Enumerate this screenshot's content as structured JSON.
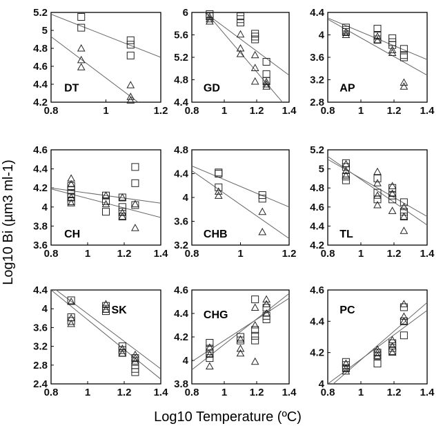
{
  "figure": {
    "xlabel": "Log10 Temperature (ºC)",
    "ylabel": "Log10 Bi (µm3 ml-1)"
  },
  "chart_data": [
    {
      "type": "scatter",
      "label": "DT",
      "xlim": [
        0.8,
        1.2
      ],
      "ylim": [
        4.2,
        5.2
      ],
      "xticks": [
        "0.8",
        "1",
        "1.2"
      ],
      "yticks": [
        "4.2",
        "4.4",
        "4.6",
        "4.8",
        "5",
        "5.2"
      ],
      "series": [
        {
          "marker": "square",
          "x": [
            0.91,
            0.91,
            1.09,
            1.09,
            1.09
          ],
          "y": [
            5.15,
            5.03,
            4.89,
            4.84,
            4.72
          ]
        },
        {
          "marker": "triangle",
          "x": [
            0.91,
            0.91,
            0.91,
            1.09,
            1.09,
            1.09
          ],
          "y": [
            4.8,
            4.67,
            4.59,
            4.39,
            4.26,
            4.22
          ]
        }
      ],
      "lines": [
        [
          0.8,
          5.18,
          1.2,
          4.7
        ],
        [
          0.8,
          4.93,
          1.2,
          4.01
        ]
      ]
    },
    {
      "type": "scatter",
      "label": "GD",
      "xlim": [
        0.8,
        1.4
      ],
      "ylim": [
        4.4,
        6
      ],
      "xticks": [
        "0.8",
        "1",
        "1.2",
        "1.4"
      ],
      "yticks": [
        "4.4",
        "4.8",
        "5.2",
        "5.6",
        "6"
      ],
      "series": [
        {
          "marker": "square",
          "x": [
            0.91,
            0.91,
            1.1,
            1.1,
            1.1,
            1.19,
            1.19,
            1.19,
            1.26,
            1.26,
            1.26
          ],
          "y": [
            5.97,
            5.93,
            5.93,
            5.88,
            5.82,
            5.62,
            5.57,
            5.52,
            5.12,
            4.9,
            4.78
          ]
        },
        {
          "marker": "triangle",
          "x": [
            0.91,
            0.91,
            0.91,
            1.1,
            1.1,
            1.1,
            1.19,
            1.19,
            1.19,
            1.26,
            1.26,
            1.26
          ],
          "y": [
            5.92,
            5.88,
            5.84,
            5.61,
            5.36,
            5.26,
            5.24,
            5.01,
            4.77,
            4.76,
            4.72,
            4.68
          ]
        }
      ],
      "lines": [
        [
          0.8,
          6.17,
          1.4,
          4.88
        ],
        [
          0.8,
          6.3,
          1.4,
          4.26
        ]
      ]
    },
    {
      "type": "scatter",
      "label": "AP",
      "xlim": [
        0.8,
        1.4
      ],
      "ylim": [
        2.8,
        4.4
      ],
      "xticks": [
        "0.8",
        "1",
        "1.2",
        "1.4"
      ],
      "yticks": [
        "2.8",
        "3.2",
        "3.6",
        "4",
        "4.4"
      ],
      "series": [
        {
          "marker": "square",
          "x": [
            0.91,
            0.91,
            0.91,
            1.1,
            1.1,
            1.1,
            1.19,
            1.19,
            1.19,
            1.26,
            1.26,
            1.26
          ],
          "y": [
            4.13,
            4.09,
            4.05,
            4.11,
            4.0,
            3.92,
            3.94,
            3.87,
            3.82,
            3.75,
            3.64,
            3.6
          ]
        },
        {
          "marker": "triangle",
          "x": [
            0.91,
            0.91,
            1.1,
            1.1,
            1.19,
            1.19,
            1.26,
            1.26
          ],
          "y": [
            4.05,
            4.0,
            3.97,
            3.9,
            3.73,
            3.68,
            3.15,
            3.08
          ]
        }
      ],
      "lines": [
        [
          0.8,
          4.3,
          1.4,
          3.56
        ],
        [
          0.8,
          4.28,
          1.4,
          3.28
        ]
      ]
    },
    {
      "type": "scatter",
      "label": "CH",
      "xlim": [
        0.8,
        1.4
      ],
      "ylim": [
        3.6,
        4.6
      ],
      "xticks": [
        "0.8",
        "1",
        "1.2",
        "1.4"
      ],
      "yticks": [
        "3.6",
        "3.8",
        "4",
        "4.2",
        "4.4",
        "4.6"
      ],
      "series": [
        {
          "marker": "square",
          "x": [
            0.91,
            0.91,
            0.91,
            0.91,
            0.91,
            1.1,
            1.1,
            1.1,
            1.19,
            1.19,
            1.19,
            1.19,
            1.26,
            1.26,
            1.26
          ],
          "y": [
            4.22,
            4.18,
            4.14,
            4.1,
            4.06,
            4.12,
            4.06,
            3.95,
            4.1,
            4.0,
            3.95,
            3.9,
            4.42,
            4.25,
            4.02
          ]
        },
        {
          "marker": "triangle",
          "x": [
            0.91,
            0.91,
            0.91,
            0.91,
            1.1,
            1.1,
            1.19,
            1.19,
            1.19,
            1.26,
            1.26
          ],
          "y": [
            4.3,
            4.24,
            4.1,
            4.04,
            4.12,
            4.03,
            4.1,
            3.94,
            3.9,
            4.03,
            3.78
          ]
        }
      ],
      "lines": [
        [
          0.8,
          4.2,
          1.4,
          4.04
        ],
        [
          0.8,
          4.19,
          1.4,
          3.89
        ]
      ]
    },
    {
      "type": "scatter",
      "label": "CHB",
      "xlim": [
        0.8,
        1.2
      ],
      "ylim": [
        3.2,
        4.8
      ],
      "xticks": [
        "0.8",
        "1",
        "1.2"
      ],
      "yticks": [
        "3.2",
        "3.6",
        "4",
        "4.4",
        "4.8"
      ],
      "series": [
        {
          "marker": "square",
          "x": [
            0.91,
            0.91,
            0.91,
            1.09,
            1.09
          ],
          "y": [
            4.42,
            4.4,
            4.17,
            4.04,
            3.98
          ]
        },
        {
          "marker": "triangle",
          "x": [
            0.91,
            0.91,
            1.09,
            1.09
          ],
          "y": [
            4.1,
            4.03,
            3.76,
            3.42
          ]
        }
      ],
      "lines": [
        [
          0.8,
          4.53,
          1.2,
          3.84
        ],
        [
          0.8,
          4.45,
          1.2,
          3.31
        ]
      ]
    },
    {
      "type": "scatter",
      "label": "TL",
      "xlim": [
        0.8,
        1.4
      ],
      "ylim": [
        4.2,
        5.2
      ],
      "xticks": [
        "0.8",
        "1",
        "1.2",
        "1.4"
      ],
      "yticks": [
        "4.2",
        "4.4",
        "4.6",
        "4.8",
        "5",
        "5.2"
      ],
      "series": [
        {
          "marker": "square",
          "x": [
            0.91,
            0.91,
            0.91,
            0.91,
            1.1,
            1.1,
            1.1,
            1.19,
            1.19,
            1.19,
            1.26,
            1.26,
            1.26
          ],
          "y": [
            5.06,
            5.02,
            4.92,
            4.88,
            4.9,
            4.75,
            4.68,
            4.8,
            4.72,
            4.68,
            4.65,
            4.55,
            4.5
          ]
        },
        {
          "marker": "triangle",
          "x": [
            0.91,
            0.91,
            0.91,
            1.1,
            1.1,
            1.1,
            1.1,
            1.19,
            1.19,
            1.19,
            1.26,
            1.26,
            1.26
          ],
          "y": [
            5.05,
            4.98,
            4.93,
            4.97,
            4.85,
            4.72,
            4.62,
            4.82,
            4.74,
            4.56,
            4.6,
            4.5,
            4.35
          ]
        }
      ],
      "lines": [
        [
          0.8,
          5.1,
          1.4,
          4.5
        ],
        [
          0.8,
          5.13,
          1.4,
          4.41
        ]
      ]
    },
    {
      "type": "scatter",
      "label": "SK",
      "xlim": [
        0.8,
        1.4
      ],
      "ylim": [
        2.4,
        4.4
      ],
      "xticks": [
        "0.8",
        "1",
        "1.2",
        "1.4"
      ],
      "yticks": [
        "2.4",
        "2.8",
        "3.2",
        "3.6",
        "4",
        "4.4"
      ],
      "series": [
        {
          "marker": "square",
          "x": [
            0.91,
            0.91,
            0.91,
            1.1,
            1.1,
            1.1,
            1.19,
            1.19,
            1.19,
            1.26,
            1.26,
            1.26,
            1.26
          ],
          "y": [
            4.18,
            3.82,
            3.74,
            4.06,
            4.0,
            3.95,
            3.2,
            3.12,
            3.06,
            2.95,
            2.8,
            2.72,
            2.65
          ]
        },
        {
          "marker": "triangle",
          "x": [
            0.91,
            0.91,
            0.91,
            1.1,
            1.1,
            1.19,
            1.19,
            1.26,
            1.26,
            1.26
          ],
          "y": [
            4.15,
            3.8,
            3.68,
            4.1,
            3.98,
            3.15,
            3.05,
            3.02,
            2.95,
            2.88
          ]
        }
      ],
      "lines": [
        [
          0.8,
          4.48,
          1.4,
          2.72
        ],
        [
          0.8,
          4.4,
          1.4,
          2.5
        ]
      ]
    },
    {
      "type": "scatter",
      "label": "CHG",
      "xlim": [
        0.8,
        1.4
      ],
      "ylim": [
        3.8,
        4.6
      ],
      "xticks": [
        "0.8",
        "1",
        "1.2",
        "1.4"
      ],
      "yticks": [
        "3.8",
        "4",
        "4.2",
        "4.4",
        "4.6"
      ],
      "series": [
        {
          "marker": "square",
          "x": [
            0.91,
            0.91,
            0.91,
            0.91,
            1.1,
            1.1,
            1.19,
            1.19,
            1.19,
            1.19,
            1.26,
            1.26,
            1.26
          ],
          "y": [
            4.15,
            4.1,
            4.06,
            4.02,
            4.2,
            4.17,
            4.52,
            4.26,
            4.21,
            4.17,
            4.45,
            4.38,
            4.35
          ]
        },
        {
          "marker": "triangle",
          "x": [
            0.91,
            0.91,
            0.91,
            1.1,
            1.1,
            1.1,
            1.19,
            1.19,
            1.19,
            1.26,
            1.26,
            1.26
          ],
          "y": [
            4.11,
            4.05,
            3.95,
            4.18,
            4.1,
            4.06,
            4.45,
            4.3,
            3.99,
            4.52,
            4.48,
            4.4
          ]
        }
      ],
      "lines": [
        [
          0.8,
          3.99,
          1.4,
          4.53
        ],
        [
          0.8,
          3.92,
          1.4,
          4.57
        ]
      ]
    },
    {
      "type": "scatter",
      "label": "PC",
      "xlim": [
        0.8,
        1.4
      ],
      "ylim": [
        4,
        4.6
      ],
      "xticks": [
        "0.8",
        "1",
        "1.2",
        "1.4"
      ],
      "yticks": [
        "4",
        "4.2",
        "4.4",
        "4.6"
      ],
      "series": [
        {
          "marker": "square",
          "x": [
            0.91,
            0.91,
            0.91,
            1.1,
            1.1,
            1.1,
            1.19,
            1.19,
            1.19,
            1.26,
            1.26,
            1.26
          ],
          "y": [
            4.14,
            4.12,
            4.1,
            4.2,
            4.18,
            4.13,
            4.26,
            4.23,
            4.21,
            4.49,
            4.4,
            4.31
          ]
        },
        {
          "marker": "triangle",
          "x": [
            0.91,
            0.91,
            0.91,
            1.1,
            1.1,
            1.1,
            1.19,
            1.19,
            1.19,
            1.26,
            1.26,
            1.26
          ],
          "y": [
            4.13,
            4.1,
            4.08,
            4.22,
            4.2,
            4.18,
            4.28,
            4.24,
            4.2,
            4.51,
            4.43,
            4.4
          ]
        }
      ],
      "lines": [
        [
          0.8,
          4.0,
          1.4,
          4.47
        ],
        [
          0.8,
          3.97,
          1.4,
          4.52
        ]
      ]
    }
  ]
}
